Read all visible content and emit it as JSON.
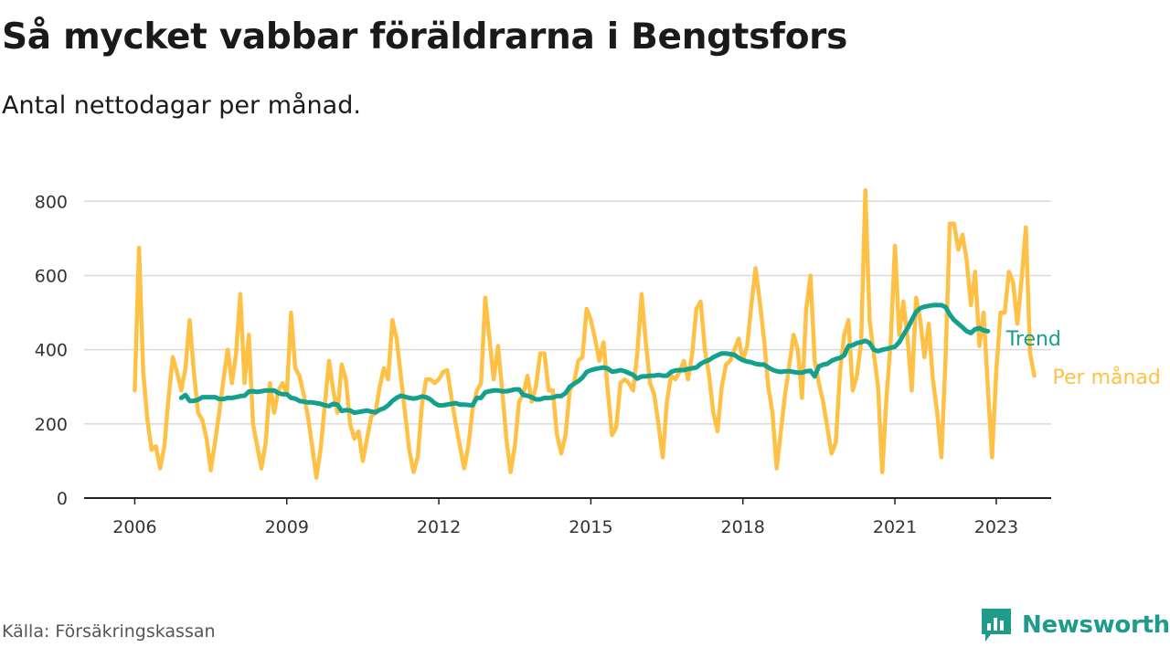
{
  "header": {
    "title": "Så mycket vabbar föräldrarna i Bengtsfors",
    "subtitle": "Antal nettodagar per månad."
  },
  "footer": {
    "source": "Källa: Försäkringskassan",
    "brand": "Newsworthy",
    "brand_icon": "bar-chart-speech-icon"
  },
  "colors": {
    "monthly": "#FFC145",
    "trend": "#13A08D",
    "grid": "#D9D9D9",
    "axis": "#222222",
    "brand": "#1E9B8A"
  },
  "chart_data": {
    "type": "line",
    "title": "Så mycket vabbar föräldrarna i Bengtsfors",
    "subtitle": "Antal nettodagar per månad.",
    "xlabel": "",
    "ylabel": "",
    "x_ticks": [
      "2006",
      "2009",
      "2012",
      "2015",
      "2018",
      "2021",
      "2023"
    ],
    "y_ticks": [
      0,
      200,
      400,
      600,
      800
    ],
    "ylim": [
      0,
      850
    ],
    "xlim": [
      "2005-01",
      "2024-02"
    ],
    "grid": "horizontal",
    "legend": "direct labels at right end of lines",
    "series": [
      {
        "name": "Per månad",
        "start": "2006-01",
        "frequency": "monthly",
        "values": [
          290,
          675,
          340,
          210,
          130,
          140,
          80,
          140,
          270,
          380,
          340,
          290,
          350,
          480,
          340,
          230,
          210,
          160,
          75,
          150,
          230,
          320,
          400,
          310,
          390,
          550,
          310,
          440,
          200,
          140,
          80,
          150,
          310,
          230,
          290,
          310,
          280,
          500,
          350,
          330,
          280,
          220,
          140,
          55,
          130,
          250,
          370,
          290,
          230,
          360,
          320,
          200,
          160,
          180,
          100,
          160,
          220,
          230,
          300,
          350,
          320,
          480,
          430,
          330,
          230,
          130,
          70,
          110,
          250,
          320,
          320,
          310,
          320,
          340,
          345,
          270,
          200,
          140,
          80,
          140,
          240,
          290,
          310,
          540,
          430,
          320,
          410,
          290,
          160,
          70,
          140,
          260,
          280,
          330,
          260,
          300,
          390,
          390,
          290,
          290,
          170,
          120,
          170,
          290,
          310,
          370,
          380,
          510,
          480,
          430,
          370,
          420,
          290,
          170,
          190,
          310,
          320,
          310,
          290,
          390,
          550,
          420,
          310,
          280,
          200,
          110,
          260,
          330,
          320,
          340,
          370,
          320,
          390,
          510,
          530,
          400,
          330,
          230,
          180,
          300,
          360,
          370,
          400,
          430,
          370,
          410,
          520,
          620,
          530,
          430,
          300,
          230,
          80,
          180,
          280,
          360,
          440,
          400,
          270,
          510,
          600,
          370,
          310,
          260,
          190,
          120,
          150,
          340,
          440,
          480,
          290,
          330,
          420,
          830,
          480,
          390,
          300,
          70,
          270,
          420,
          680,
          440,
          530,
          430,
          290,
          540,
          480,
          380,
          470,
          320,
          230,
          110,
          380,
          740,
          740,
          670,
          710,
          640,
          520,
          610,
          410,
          500,
          300,
          110,
          340,
          500,
          500,
          610,
          580,
          470,
          590,
          730,
          390,
          330
        ]
      },
      {
        "name": "Trend",
        "start": "2006-12",
        "frequency": "monthly",
        "values": [
          270,
          278,
          262,
          262,
          265,
          272,
          272,
          272,
          272,
          267,
          267,
          270,
          270,
          272,
          275,
          276,
          287,
          288,
          286,
          288,
          290,
          290,
          290,
          283,
          280,
          280,
          270,
          268,
          262,
          260,
          258,
          258,
          256,
          254,
          250,
          248,
          254,
          252,
          235,
          237,
          236,
          230,
          232,
          234,
          236,
          233,
          231,
          238,
          242,
          250,
          262,
          270,
          276,
          273,
          270,
          268,
          270,
          274,
          272,
          266,
          256,
          250,
          250,
          252,
          254,
          256,
          252,
          252,
          251,
          250,
          270,
          270,
          285,
          288,
          290,
          290,
          288,
          288,
          290,
          293,
          293,
          278,
          276,
          272,
          266,
          266,
          270,
          270,
          271,
          275,
          275,
          283,
          300,
          308,
          315,
          325,
          340,
          345,
          348,
          350,
          352,
          349,
          341,
          342,
          345,
          342,
          337,
          332,
          322,
          328,
          328,
          330,
          330,
          332,
          330,
          330,
          340,
          344,
          345,
          345,
          348,
          350,
          352,
          362,
          368,
          372,
          380,
          385,
          390,
          390,
          388,
          386,
          378,
          372,
          368,
          366,
          362,
          360,
          360,
          352,
          346,
          342,
          340,
          342,
          342,
          340,
          338,
          338,
          342,
          343,
          328,
          355,
          360,
          362,
          370,
          375,
          378,
          385,
          410,
          412,
          418,
          420,
          424,
          418,
          400,
          396,
          400,
          402,
          405,
          408,
          420,
          440,
          458,
          480,
          502,
          512,
          516,
          518,
          520,
          520,
          520,
          515,
          495,
          480,
          470,
          460,
          450,
          445,
          455,
          458,
          452,
          450
        ]
      }
    ]
  }
}
